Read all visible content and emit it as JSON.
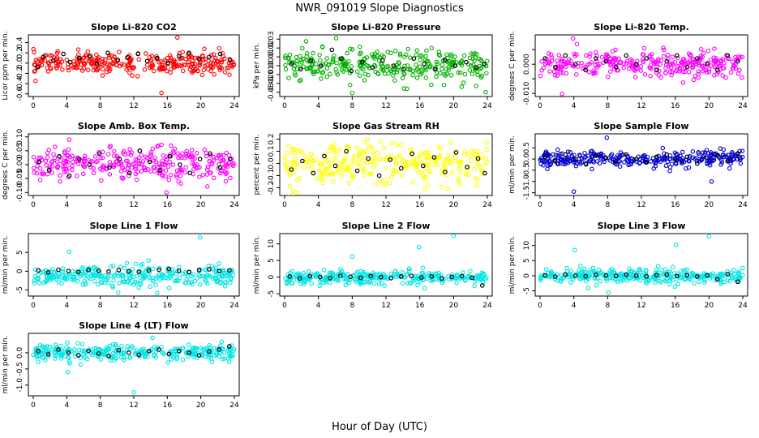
{
  "figure": {
    "title": "NWR_091019  Slope Diagnostics",
    "xlabel": "Hour of Day (UTC)"
  },
  "chart_data": [
    {
      "type": "scatter",
      "title": "Slope Li-820 CO2",
      "ylabel": "Licor ppm per min.",
      "xlim": [
        0,
        24
      ],
      "ylim": [
        -0.62,
        0.52
      ],
      "xticks": [
        0,
        4,
        8,
        12,
        16,
        20,
        24
      ],
      "yticks": [
        -0.6,
        -0.4,
        -0.2,
        0.0,
        0.2,
        0.4
      ],
      "ytick_labels": [
        "-0.6",
        "-0.4",
        "-0.2",
        "0.0",
        "0.2",
        "0.4"
      ],
      "color": "#ff0000",
      "n_points": 300,
      "spread": 0.1,
      "outliers": [
        {
          "x": 15.3,
          "y": -0.58
        },
        {
          "x": 17.2,
          "y": 0.5
        }
      ],
      "black_points": [
        [
          0.5,
          -0.08
        ],
        [
          1.2,
          0.12
        ],
        [
          2.4,
          0.05
        ],
        [
          3.6,
          0.18
        ],
        [
          4.4,
          0.02
        ],
        [
          5.5,
          0.1
        ],
        [
          6.8,
          0.14
        ],
        [
          7.6,
          -0.02
        ],
        [
          8.9,
          0.2
        ],
        [
          10.1,
          0.06
        ],
        [
          11.3,
          0.12
        ],
        [
          12.5,
          0.18
        ],
        [
          13.6,
          0.04
        ],
        [
          14.8,
          0.1
        ],
        [
          16.1,
          0.0
        ],
        [
          17.4,
          0.14
        ],
        [
          18.6,
          0.2
        ],
        [
          19.8,
          0.08
        ],
        [
          21.0,
          0.12
        ],
        [
          22.3,
          0.18
        ],
        [
          23.5,
          0.06
        ]
      ]
    },
    {
      "type": "scatter",
      "title": "Slope Li-820 Pressure",
      "ylabel": "kPa per min.",
      "xlim": [
        0,
        24
      ],
      "ylim": [
        -0.033,
        0.033
      ],
      "xticks": [
        0,
        4,
        8,
        12,
        16,
        20,
        24
      ],
      "yticks": [
        -0.03,
        -0.02,
        -0.01,
        0.0,
        0.01,
        0.02,
        0.03
      ],
      "ytick_labels": [
        "-0.03",
        "-0.02",
        "-0.01",
        "0.00",
        "0.01",
        "0.02",
        "0.03"
      ],
      "color": "#00b000",
      "n_points": 300,
      "spread": 0.009,
      "outliers": [
        {
          "x": 6.1,
          "y": 0.031
        },
        {
          "x": 8.0,
          "y": -0.031
        },
        {
          "x": 23.8,
          "y": -0.03
        }
      ],
      "black_points": [
        [
          0.8,
          0.002
        ],
        [
          1.9,
          -0.004
        ],
        [
          3.1,
          0.006
        ],
        [
          4.3,
          0.0
        ],
        [
          5.6,
          0.018
        ],
        [
          6.7,
          0.008
        ],
        [
          7.9,
          -0.006
        ],
        [
          9.2,
          0.004
        ],
        [
          10.4,
          -0.002
        ],
        [
          11.6,
          0.006
        ],
        [
          12.9,
          0.0
        ],
        [
          14.1,
          -0.004
        ],
        [
          15.3,
          0.008
        ],
        [
          16.5,
          0.002
        ],
        [
          17.8,
          -0.004
        ],
        [
          19.0,
          0.006
        ],
        [
          20.2,
          0.0
        ],
        [
          21.5,
          0.004
        ],
        [
          22.7,
          -0.002
        ],
        [
          23.6,
          0.002
        ]
      ]
    },
    {
      "type": "scatter",
      "title": "Slope Li-820 Temp.",
      "ylabel": "degrees C per min.",
      "xlim": [
        0,
        24
      ],
      "ylim": [
        -0.0105,
        0.0095
      ],
      "xticks": [
        0,
        4,
        8,
        12,
        16,
        20,
        24
      ],
      "yticks": [
        -0.01,
        -0.005,
        0.0,
        0.005
      ],
      "ytick_labels": [
        "-0.010",
        "",
        "0.000",
        ""
      ],
      "color": "#ff00ff",
      "n_points": 300,
      "spread": 0.0022,
      "outliers": [
        {
          "x": 2.6,
          "y": -0.0102
        },
        {
          "x": 3.9,
          "y": 0.0088
        }
      ],
      "black_points": [
        [
          0.6,
          0.002
        ],
        [
          1.8,
          -0.001
        ],
        [
          3.0,
          0.003
        ],
        [
          4.2,
          0.0
        ],
        [
          5.4,
          -0.002
        ],
        [
          6.6,
          0.002
        ],
        [
          7.8,
          0.001
        ],
        [
          9.0,
          -0.001
        ],
        [
          10.2,
          0.003
        ],
        [
          11.4,
          0.0
        ],
        [
          12.6,
          0.002
        ],
        [
          13.8,
          -0.002
        ],
        [
          15.0,
          0.001
        ],
        [
          16.2,
          0.003
        ],
        [
          17.4,
          -0.001
        ],
        [
          18.6,
          0.002
        ],
        [
          19.8,
          0.0
        ],
        [
          21.0,
          -0.002
        ],
        [
          22.2,
          0.003
        ],
        [
          23.4,
          0.001
        ]
      ]
    },
    {
      "type": "scatter",
      "title": "Slope Amb. Box Temp.",
      "ylabel": "degrees C per min.",
      "xlim": [
        0,
        24
      ],
      "ylim": [
        -0.105,
        0.105
      ],
      "xticks": [
        0,
        4,
        8,
        12,
        16,
        20,
        24
      ],
      "yticks": [
        -0.1,
        -0.05,
        0.0,
        0.05,
        0.1
      ],
      "ytick_labels": [
        "-0.10",
        "-0.05",
        "0.00",
        "0.05",
        "0.10"
      ],
      "color": "#ff00ff",
      "n_points": 300,
      "spread": 0.03,
      "outliers": [
        {
          "x": 15.9,
          "y": -0.1
        },
        {
          "x": 4.3,
          "y": 0.09
        }
      ],
      "black_points": [
        [
          0.7,
          0.01
        ],
        [
          1.9,
          -0.02
        ],
        [
          3.1,
          0.03
        ],
        [
          4.3,
          -0.04
        ],
        [
          5.5,
          0.02
        ],
        [
          6.7,
          0.0
        ],
        [
          7.9,
          0.04
        ],
        [
          9.1,
          -0.01
        ],
        [
          10.3,
          0.02
        ],
        [
          11.5,
          -0.03
        ],
        [
          12.7,
          0.05
        ],
        [
          13.9,
          0.01
        ],
        [
          15.1,
          -0.02
        ],
        [
          16.3,
          0.03
        ],
        [
          17.5,
          0.0
        ],
        [
          18.7,
          -0.03
        ],
        [
          19.9,
          0.02
        ],
        [
          21.1,
          0.04
        ],
        [
          22.3,
          -0.01
        ],
        [
          23.5,
          0.02
        ]
      ]
    },
    {
      "type": "scatter",
      "title": "Slope Gas Stream RH",
      "ylabel": "percent per min.",
      "xlim": [
        0,
        24
      ],
      "ylim": [
        -0.25,
        0.23
      ],
      "xticks": [
        0,
        4,
        8,
        12,
        16,
        20,
        24
      ],
      "yticks": [
        -0.2,
        -0.1,
        0.0,
        0.1,
        0.2
      ],
      "ytick_labels": [
        "-0.2",
        "-0.1",
        "0.0",
        "0.1",
        "0.2"
      ],
      "color": "#ffff00",
      "n_points": 300,
      "spread": 0.08,
      "outliers": [
        {
          "x": 1.6,
          "y": -0.24
        },
        {
          "x": 9.8,
          "y": 0.2
        }
      ],
      "black_points": [
        [
          0.8,
          -0.05
        ],
        [
          2.1,
          0.02
        ],
        [
          3.4,
          -0.08
        ],
        [
          4.7,
          0.06
        ],
        [
          6.0,
          -0.02
        ],
        [
          7.3,
          0.1
        ],
        [
          8.6,
          -0.06
        ],
        [
          9.9,
          0.04
        ],
        [
          11.2,
          -0.1
        ],
        [
          12.5,
          0.03
        ],
        [
          13.8,
          -0.04
        ],
        [
          15.1,
          0.08
        ],
        [
          16.4,
          -0.02
        ],
        [
          17.7,
          0.05
        ],
        [
          19.0,
          -0.07
        ],
        [
          20.3,
          0.09
        ],
        [
          21.6,
          -0.03
        ],
        [
          22.9,
          0.04
        ],
        [
          23.7,
          -0.08
        ]
      ]
    },
    {
      "type": "scatter",
      "title": "Slope Sample Flow",
      "ylabel": "ml/min per min.",
      "xlim": [
        0,
        24
      ],
      "ylim": [
        -1.55,
        1.05
      ],
      "xticks": [
        0,
        4,
        8,
        12,
        16,
        20,
        24
      ],
      "yticks": [
        -1.5,
        -1.0,
        -0.5,
        0.0,
        0.5
      ],
      "ytick_labels": [
        "-1.5",
        "-1.0",
        "-0.5",
        "0.0",
        "0.5"
      ],
      "color": "#0000cc",
      "n_points": 300,
      "spread": 0.18,
      "outliers": [
        {
          "x": 4.0,
          "y": -1.45
        },
        {
          "x": 7.9,
          "y": 0.95
        },
        {
          "x": 20.3,
          "y": -1.0
        }
      ],
      "black_points": [
        [
          0.6,
          0.1
        ],
        [
          1.8,
          -0.1
        ],
        [
          3.0,
          0.2
        ],
        [
          4.2,
          0.0
        ],
        [
          5.4,
          -0.2
        ],
        [
          6.6,
          0.15
        ],
        [
          7.8,
          0.05
        ],
        [
          9.0,
          -0.1
        ],
        [
          10.2,
          0.2
        ],
        [
          11.4,
          0.0
        ],
        [
          12.6,
          -0.15
        ],
        [
          13.8,
          0.1
        ],
        [
          15.0,
          0.2
        ],
        [
          16.2,
          -0.05
        ],
        [
          17.4,
          0.1
        ],
        [
          18.6,
          -0.2
        ],
        [
          19.8,
          0.05
        ],
        [
          21.0,
          0.15
        ],
        [
          22.2,
          -0.1
        ],
        [
          23.4,
          0.25
        ]
      ]
    },
    {
      "type": "scatter",
      "title": "Slope Line 1 Flow",
      "ylabel": "ml/min per min.",
      "xlim": [
        0,
        24
      ],
      "ylim": [
        -6.2,
        9.6
      ],
      "xticks": [
        0,
        4,
        8,
        12,
        16,
        20,
        24
      ],
      "yticks": [
        -5,
        0,
        5
      ],
      "ytick_labels": [
        "-5",
        "0",
        "5"
      ],
      "color": "#00e5e5",
      "n_points": 300,
      "spread": 1.4,
      "center": -1.5,
      "outliers": [
        {
          "x": 4.3,
          "y": 5.2
        },
        {
          "x": 19.9,
          "y": 9.0
        },
        {
          "x": 14.8,
          "y": -5.8
        }
      ],
      "black_points": [
        [
          0.6,
          0.2
        ],
        [
          1.8,
          -0.3
        ],
        [
          3.0,
          0.4
        ],
        [
          4.2,
          0.0
        ],
        [
          5.4,
          -0.2
        ],
        [
          6.6,
          0.3
        ],
        [
          7.8,
          0.1
        ],
        [
          9.0,
          -0.1
        ],
        [
          10.2,
          0.3
        ],
        [
          11.4,
          0.0
        ],
        [
          12.6,
          -0.2
        ],
        [
          13.8,
          0.2
        ],
        [
          15.0,
          0.4
        ],
        [
          16.2,
          0.6
        ],
        [
          17.4,
          0.1
        ],
        [
          18.6,
          -0.2
        ],
        [
          19.8,
          0.3
        ],
        [
          21.0,
          0.5
        ],
        [
          22.2,
          0.0
        ],
        [
          23.4,
          0.2
        ]
      ]
    },
    {
      "type": "scatter",
      "title": "Slope Line 2 Flow",
      "ylabel": "ml/min per min.",
      "xlim": [
        0,
        24
      ],
      "ylim": [
        -5.2,
        12.6
      ],
      "xticks": [
        0,
        4,
        8,
        12,
        16,
        20,
        24
      ],
      "yticks": [
        -5,
        0,
        5,
        10
      ],
      "ytick_labels": [
        "-5",
        "0",
        "5",
        "10"
      ],
      "color": "#00e5e5",
      "n_points": 300,
      "spread": 1.0,
      "center": 0.0,
      "outliers": [
        {
          "x": 8.0,
          "y": 6.2
        },
        {
          "x": 15.9,
          "y": 9.0
        },
        {
          "x": 20.0,
          "y": 12.4
        }
      ],
      "black_points": [
        [
          0.6,
          0.2
        ],
        [
          1.8,
          -0.4
        ],
        [
          3.0,
          0.3
        ],
        [
          4.2,
          0.0
        ],
        [
          5.4,
          -0.3
        ],
        [
          6.6,
          0.4
        ],
        [
          7.8,
          0.1
        ],
        [
          9.0,
          -0.2
        ],
        [
          10.2,
          0.3
        ],
        [
          11.4,
          0.0
        ],
        [
          12.6,
          -0.3
        ],
        [
          13.8,
          0.2
        ],
        [
          15.0,
          0.4
        ],
        [
          16.2,
          -0.1
        ],
        [
          17.4,
          0.2
        ],
        [
          18.6,
          -0.4
        ],
        [
          19.8,
          0.1
        ],
        [
          21.0,
          0.3
        ],
        [
          22.2,
          -0.2
        ],
        [
          23.4,
          -2.5
        ]
      ]
    },
    {
      "type": "scatter",
      "title": "Slope Line 3 Flow",
      "ylabel": "ml/min per min.",
      "xlim": [
        0,
        24
      ],
      "ylim": [
        -6.2,
        13.4
      ],
      "xticks": [
        0,
        4,
        8,
        12,
        16,
        20,
        24
      ],
      "yticks": [
        -5,
        0,
        5,
        10
      ],
      "ytick_labels": [
        "-5",
        "0",
        "5",
        "10"
      ],
      "color": "#00e5e5",
      "n_points": 300,
      "spread": 1.2,
      "center": 0.0,
      "outliers": [
        {
          "x": 4.1,
          "y": 8.5
        },
        {
          "x": 16.1,
          "y": 10.2
        },
        {
          "x": 20.0,
          "y": 13.0
        },
        {
          "x": 8.1,
          "y": -5.6
        }
      ],
      "black_points": [
        [
          0.6,
          0.1
        ],
        [
          1.8,
          -0.3
        ],
        [
          3.0,
          0.4
        ],
        [
          4.2,
          0.0
        ],
        [
          5.4,
          -0.2
        ],
        [
          6.6,
          0.3
        ],
        [
          7.8,
          0.1
        ],
        [
          9.0,
          -0.1
        ],
        [
          10.2,
          0.3
        ],
        [
          11.4,
          0.0
        ],
        [
          12.6,
          -0.2
        ],
        [
          13.8,
          0.2
        ],
        [
          15.0,
          0.4
        ],
        [
          16.2,
          -0.1
        ],
        [
          17.4,
          0.2
        ],
        [
          18.6,
          -0.3
        ],
        [
          19.8,
          0.1
        ],
        [
          21.0,
          -1.2
        ],
        [
          22.2,
          0.5
        ],
        [
          23.4,
          -2.0
        ]
      ]
    },
    {
      "type": "scatter",
      "title": "Slope Line 4 (LT) Flow",
      "ylabel": "ml/min per min.",
      "xlim": [
        0,
        24
      ],
      "ylim": [
        -1.28,
        0.55
      ],
      "xticks": [
        0,
        4,
        8,
        12,
        16,
        20,
        24
      ],
      "yticks": [
        -1.0,
        -0.5,
        0.0
      ],
      "ytick_labels": [
        "-1.0",
        "-0.5",
        "0.0"
      ],
      "color": "#00e5e5",
      "n_points": 300,
      "spread": 0.13,
      "center": 0.0,
      "outliers": [
        {
          "x": 12.0,
          "y": -1.22
        },
        {
          "x": 4.1,
          "y": -0.6
        }
      ],
      "black_points": [
        [
          0.6,
          0.05
        ],
        [
          1.8,
          -0.05
        ],
        [
          3.0,
          0.1
        ],
        [
          4.2,
          0.0
        ],
        [
          5.4,
          -0.08
        ],
        [
          6.6,
          0.06
        ],
        [
          7.8,
          -0.02
        ],
        [
          9.0,
          -0.1
        ],
        [
          10.2,
          0.08
        ],
        [
          11.4,
          0.0
        ],
        [
          12.6,
          -0.06
        ],
        [
          13.8,
          0.05
        ],
        [
          15.0,
          0.1
        ],
        [
          16.2,
          -0.04
        ],
        [
          17.4,
          0.06
        ],
        [
          18.6,
          0.0
        ],
        [
          19.8,
          -0.08
        ],
        [
          21.0,
          0.04
        ],
        [
          22.2,
          0.1
        ],
        [
          23.4,
          0.2
        ]
      ]
    }
  ]
}
